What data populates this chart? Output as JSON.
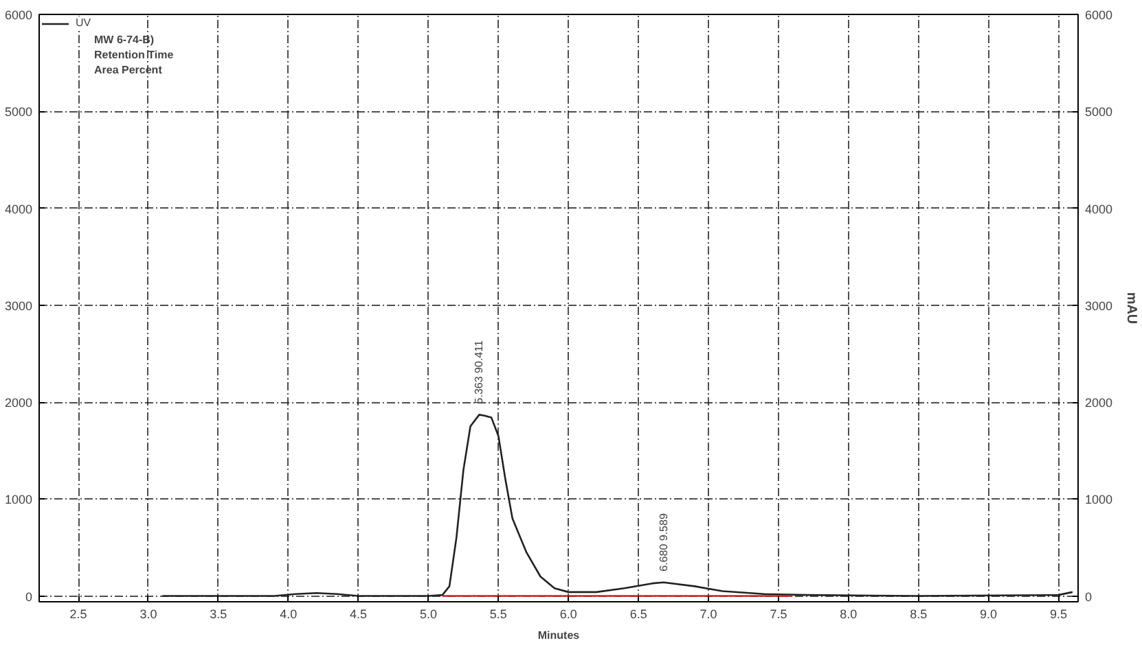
{
  "chart_data": {
    "type": "line",
    "xlabel": "Minutes",
    "y2label": "mAU",
    "xlim": [
      2.22,
      9.64
    ],
    "ylim": [
      -60,
      6000
    ],
    "y2lim": [
      -60,
      6000
    ],
    "xticks": [
      2.5,
      {
        "value": 3,
        "label": "3.0"
      },
      3.5,
      {
        "value": 4,
        "label": "4.0"
      },
      4.5,
      {
        "value": 5,
        "label": "5.0"
      },
      5.5,
      {
        "value": 6,
        "label": "6.0"
      },
      6.5,
      {
        "value": 7,
        "label": "7.0"
      },
      7.5,
      {
        "value": 8,
        "label": "8.0"
      },
      8.5,
      {
        "value": 9,
        "label": "9.0"
      },
      9.5
    ],
    "yticks": [
      0,
      1000,
      2000,
      3000,
      4000,
      5000,
      6000
    ],
    "y2ticks": [
      0,
      1000,
      2000,
      3000,
      4000,
      5000,
      6000
    ],
    "grid": true,
    "legend": "top left",
    "marker": "none",
    "line_style": "solid",
    "series": [
      {
        "name": "UV",
        "color": "#222222",
        "x": [
          3.1,
          3.9,
          4.05,
          4.2,
          4.35,
          4.5,
          5.0,
          5.1,
          5.15,
          5.2,
          5.25,
          5.3,
          5.363,
          5.4,
          5.45,
          5.5,
          5.55,
          5.6,
          5.7,
          5.8,
          5.9,
          6.0,
          6.2,
          6.4,
          6.6,
          6.68,
          6.9,
          7.1,
          7.4,
          7.7,
          8.5,
          9.5,
          9.6
        ],
        "values": [
          0,
          0,
          20,
          30,
          20,
          0,
          0,
          10,
          100,
          600,
          1300,
          1750,
          1870,
          1860,
          1840,
          1650,
          1200,
          800,
          450,
          200,
          80,
          40,
          40,
          80,
          130,
          140,
          100,
          50,
          20,
          10,
          0,
          10,
          40
        ]
      },
      {
        "color": "#cc2222",
        "x": [
          5.1,
          7.6
        ],
        "values": [
          0,
          0
        ]
      }
    ],
    "annotations": [
      "MW 6-74-B)",
      "Retention Time",
      "Area Percent",
      {
        "text": "5.363 90.411",
        "x": 5.363,
        "y": 1870
      },
      {
        "text": "6.680 9.589",
        "x": 6.68,
        "y": 140
      }
    ]
  }
}
